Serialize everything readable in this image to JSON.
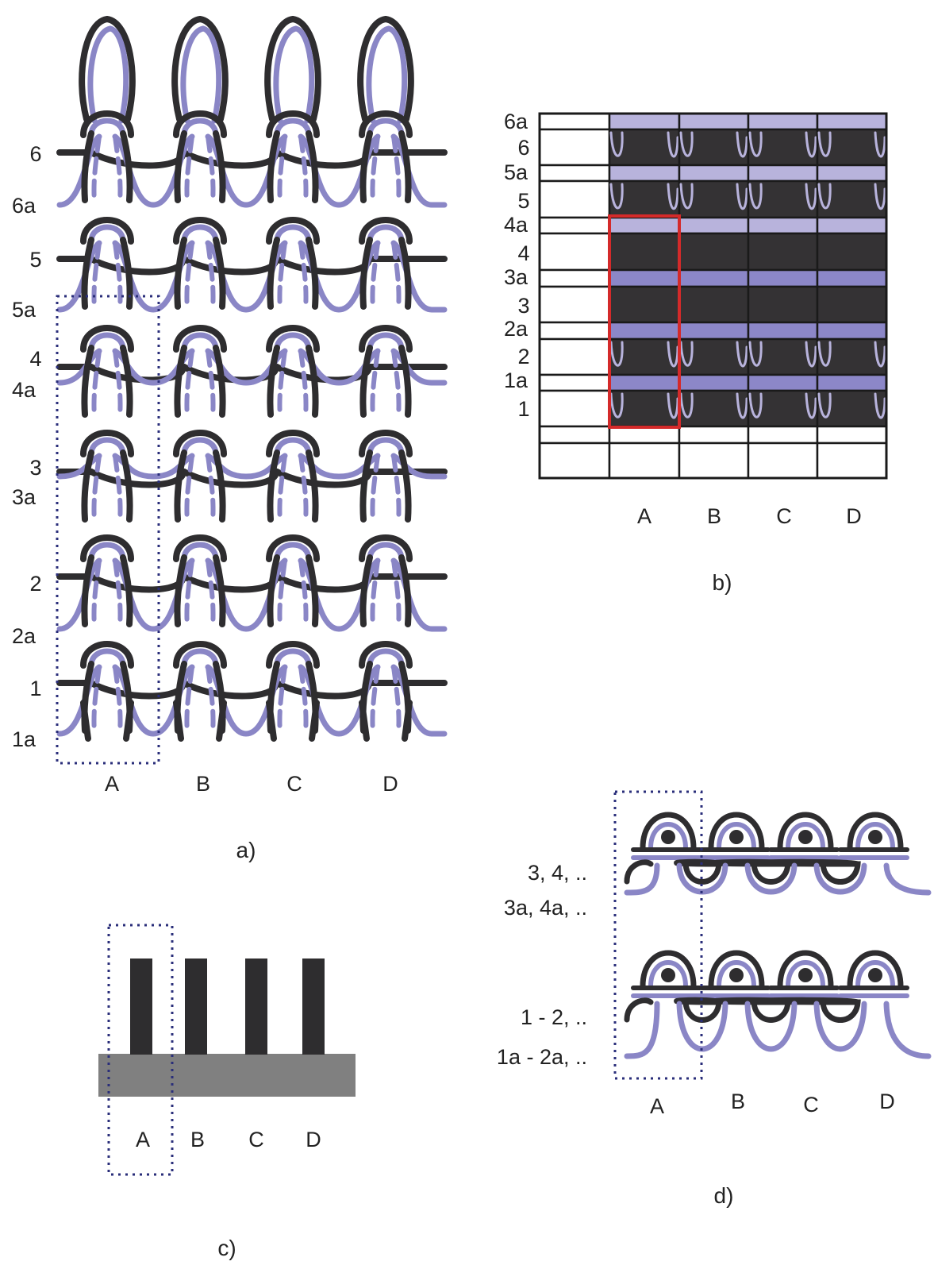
{
  "colors": {
    "dark": "#2e2d2f",
    "lilac": "#8a86c6",
    "lilac_light": "#b8b3dc",
    "lilac_mid": "#8c87c8",
    "grid_dark": "#343234",
    "red": "#d42a2a",
    "dot_blue": "#2a2e7a",
    "base_grey": "#808080"
  },
  "panel_a": {
    "caption": "a)",
    "columns": [
      "A",
      "B",
      "C",
      "D"
    ],
    "row_labels": [
      "6",
      "6a",
      "5",
      "5a",
      "4",
      "4a",
      "3",
      "3a",
      "2",
      "2a",
      "1",
      "1a"
    ]
  },
  "panel_b": {
    "caption": "b)",
    "columns": [
      "A",
      "B",
      "C",
      "D"
    ],
    "row_labels": [
      "6a",
      "6",
      "5a",
      "5",
      "4a",
      "4",
      "3a",
      "3",
      "2a",
      "2",
      "1a",
      "1"
    ]
  },
  "panel_c": {
    "caption": "c)",
    "columns": [
      "A",
      "B",
      "C",
      "D"
    ]
  },
  "panel_d": {
    "caption": "d)",
    "columns": [
      "A",
      "B",
      "C",
      "D"
    ],
    "row_labels": [
      "3, 4, ..",
      "3a, 4a, ..",
      "1 - 2, ..",
      "1a - 2a, .."
    ]
  }
}
